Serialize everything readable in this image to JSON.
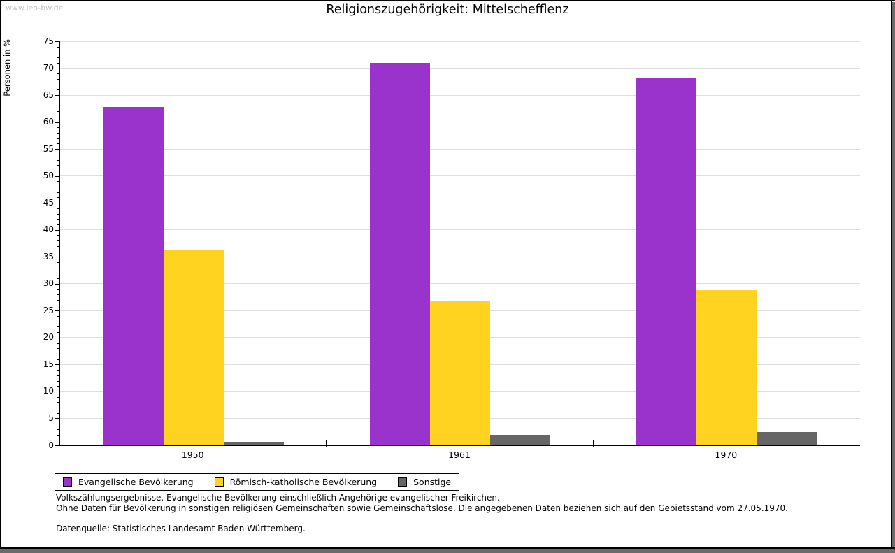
{
  "page": {
    "watermark": "www.leo-bw.de",
    "title": "Religionszugehörigkeit: Mittelschefflenz"
  },
  "chart_data": {
    "type": "bar",
    "title": "Religionszugehörigkeit: Mittelschefflenz",
    "ylabel": "Personen in %",
    "xlabel": "",
    "categories": [
      "1950",
      "1961",
      "1970"
    ],
    "series": [
      {
        "name": "Evangelische Bevölkerung",
        "color": "#9933cc",
        "values": [
          62.8,
          71.0,
          68.3
        ]
      },
      {
        "name": "Römisch-katholische Bevölkerung",
        "color": "#ffd320",
        "values": [
          36.3,
          26.9,
          28.8
        ]
      },
      {
        "name": "Sonstige",
        "color": "#666666",
        "values": [
          0.7,
          1.9,
          2.5
        ]
      }
    ],
    "ylim": [
      0,
      75
    ],
    "y_major_step": 5,
    "y_minor_step": 1,
    "grid": true,
    "legend_position": "bottom-left"
  },
  "footnotes": {
    "line1": "Volkszählungsergebnisse. Evangelische Bevölkerung einschließlich Angehörige evangelischer Freikirchen.",
    "line2": "Ohne Daten für Bevölkerung in sonstigen religiösen Gemeinschaften sowie Gemeinschaftslose. Die angegebenen Daten beziehen sich auf den Gebietsstand vom 27.05.1970.",
    "source": "Datenquelle: Statistisches Landesamt Baden-Württemberg."
  }
}
